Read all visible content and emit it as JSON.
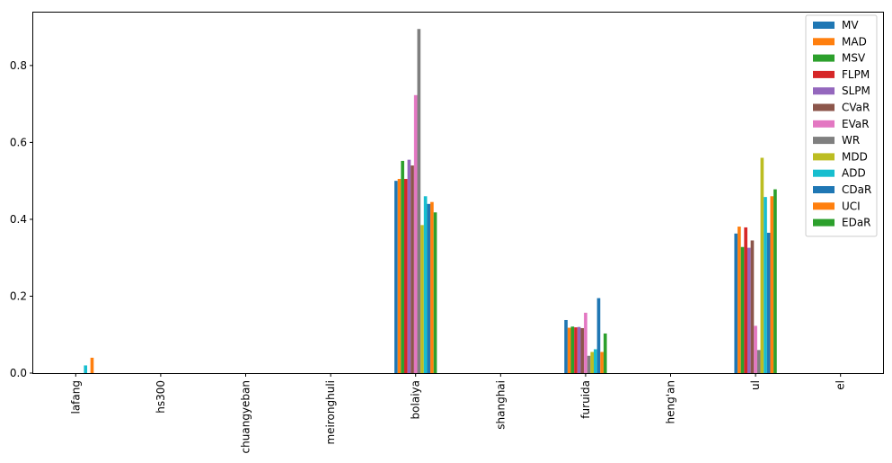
{
  "chart_data": {
    "type": "bar",
    "title": "",
    "xlabel": "",
    "ylabel": "",
    "categories": [
      "lafang",
      "hs300",
      "chuangyeban",
      "meironghuli",
      "bolaiya",
      "shanghai",
      "furuida",
      "heng'an",
      "ul",
      "el"
    ],
    "ylim": [
      0,
      0.94
    ],
    "yticks": [
      0.0,
      0.2,
      0.4,
      0.6,
      0.8
    ],
    "ytick_labels": [
      "0.0",
      "0.2",
      "0.4",
      "0.6",
      "0.8"
    ],
    "grid": false,
    "legend_position": "top-right",
    "series": [
      {
        "name": "MV",
        "color": "#1f77b4",
        "values": [
          0.0,
          0.0,
          0.0,
          0.0,
          0.5,
          0.0,
          0.138,
          0.0,
          0.363,
          0.0
        ]
      },
      {
        "name": "MAD",
        "color": "#ff7f0e",
        "values": [
          0.0,
          0.0,
          0.0,
          0.0,
          0.505,
          0.0,
          0.118,
          0.0,
          0.381,
          0.0
        ]
      },
      {
        "name": "MSV",
        "color": "#2ca02c",
        "values": [
          0.0,
          0.0,
          0.0,
          0.0,
          0.552,
          0.0,
          0.121,
          0.0,
          0.328,
          0.0
        ]
      },
      {
        "name": "FLPM",
        "color": "#d62728",
        "values": [
          0.0,
          0.0,
          0.0,
          0.0,
          0.505,
          0.0,
          0.119,
          0.0,
          0.379,
          0.0
        ]
      },
      {
        "name": "SLPM",
        "color": "#9467bd",
        "values": [
          0.0,
          0.0,
          0.0,
          0.0,
          0.555,
          0.0,
          0.12,
          0.0,
          0.326,
          0.0
        ]
      },
      {
        "name": "CVaR",
        "color": "#8c564b",
        "values": [
          0.0,
          0.0,
          0.0,
          0.0,
          0.54,
          0.0,
          0.117,
          0.0,
          0.345,
          0.0
        ]
      },
      {
        "name": "EVaR",
        "color": "#e377c2",
        "values": [
          0.0,
          0.0,
          0.0,
          0.0,
          0.723,
          0.0,
          0.157,
          0.0,
          0.123,
          0.0
        ]
      },
      {
        "name": "WR",
        "color": "#7f7f7f",
        "values": [
          0.0,
          0.0,
          0.0,
          0.0,
          0.895,
          0.0,
          0.045,
          0.0,
          0.06,
          0.0
        ]
      },
      {
        "name": "MDD",
        "color": "#bcbd22",
        "values": [
          0.0,
          0.0,
          0.0,
          0.0,
          0.385,
          0.0,
          0.055,
          0.0,
          0.56,
          0.0
        ]
      },
      {
        "name": "ADD",
        "color": "#17becf",
        "values": [
          0.02,
          0.0,
          0.0,
          0.0,
          0.46,
          0.0,
          0.062,
          0.0,
          0.458,
          0.0
        ]
      },
      {
        "name": "CDaR",
        "color": "#1f77b4",
        "values": [
          0.0,
          0.0,
          0.0,
          0.0,
          0.44,
          0.0,
          0.195,
          0.0,
          0.365,
          0.0
        ]
      },
      {
        "name": "UCI",
        "color": "#ff7f0e",
        "values": [
          0.04,
          0.0,
          0.0,
          0.0,
          0.445,
          0.0,
          0.055,
          0.0,
          0.46,
          0.0
        ]
      },
      {
        "name": "EDaR",
        "color": "#2ca02c",
        "values": [
          0.0,
          0.0,
          0.0,
          0.0,
          0.418,
          0.0,
          0.103,
          0.0,
          0.478,
          0.0
        ]
      }
    ]
  }
}
